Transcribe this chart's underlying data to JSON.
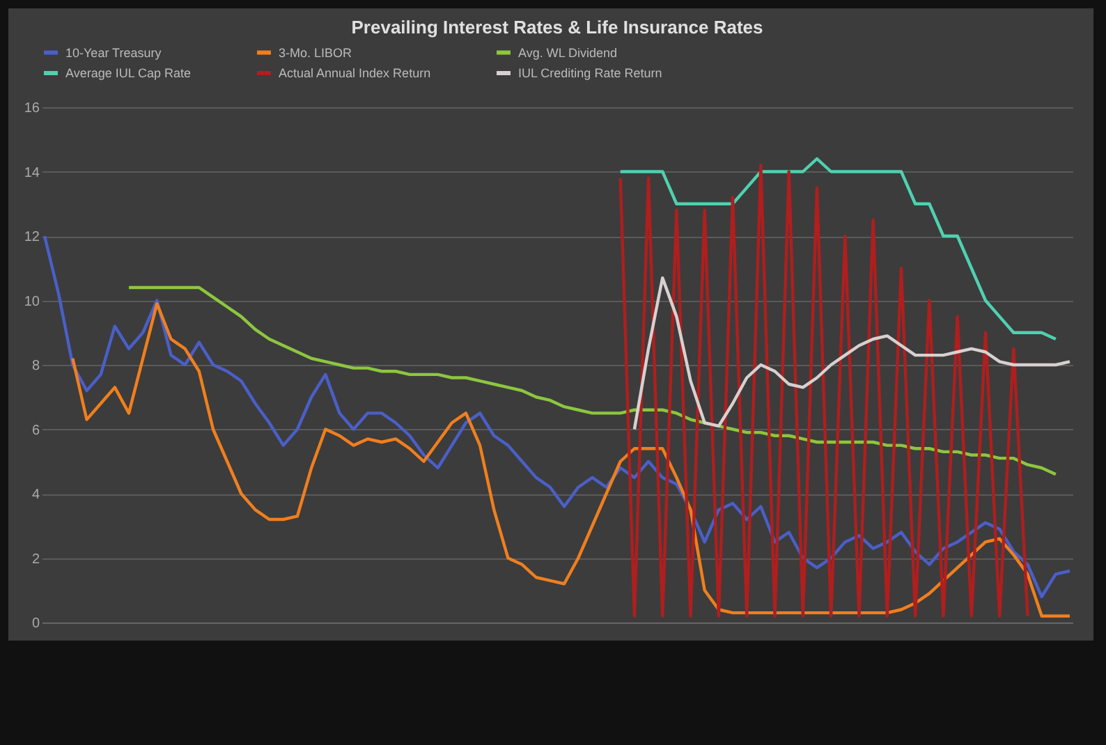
{
  "chart_data": {
    "type": "line",
    "title": "Prevailing Interest Rates & Life Insurance Rates",
    "categories": [
      null,
      null,
      null,
      null,
      null,
      null,
      null,
      null,
      null,
      null,
      null,
      null,
      null,
      null,
      null,
      null,
      null,
      null,
      null,
      null,
      null,
      null,
      null,
      null,
      null,
      null,
      null,
      null,
      null,
      null,
      null,
      null,
      null,
      null,
      null,
      null,
      null,
      null,
      null,
      null,
      null,
      null,
      null,
      null,
      null,
      null,
      null,
      null,
      null,
      null,
      null,
      null,
      null,
      null,
      null,
      null,
      null,
      null,
      null,
      null,
      null,
      null,
      null,
      null,
      null,
      null,
      null,
      null,
      null,
      null,
      null,
      null,
      null,
      null
    ],
    "ylim": [
      0,
      16
    ],
    "yticks": [
      0,
      2,
      4,
      6,
      8,
      10,
      12,
      14,
      16
    ],
    "grid": "y",
    "legend": "top",
    "series": [
      {
        "name": "10-Year Treasury",
        "color": "#4a5fc8",
        "values": [
          12.0,
          10.2,
          8.0,
          7.2,
          7.7,
          9.2,
          8.5,
          9.0,
          10.0,
          8.3,
          8.0,
          8.7,
          8.0,
          7.8,
          7.5,
          6.8,
          6.2,
          5.5,
          6.0,
          7.0,
          7.7,
          6.5,
          6.0,
          6.5,
          6.5,
          6.2,
          5.8,
          5.2,
          4.8,
          5.5,
          6.2,
          6.5,
          5.8,
          5.5,
          5.0,
          4.5,
          4.2,
          3.6,
          4.2,
          4.5,
          4.2,
          4.8,
          4.5,
          5.0,
          4.5,
          4.3,
          3.5,
          2.5,
          3.5,
          3.7,
          3.2,
          3.6,
          2.5,
          2.8,
          2.0,
          1.7,
          2.0,
          2.5,
          2.7,
          2.3,
          2.5,
          2.8,
          2.2,
          1.8,
          2.3,
          2.5,
          2.8,
          3.1,
          2.9,
          2.2,
          1.8,
          0.8,
          1.5,
          1.6
        ]
      },
      {
        "name": "3-Mo. LIBOR",
        "color": "#f07f1e",
        "values": [
          null,
          null,
          8.2,
          6.3,
          6.8,
          7.3,
          6.5,
          8.2,
          9.9,
          8.8,
          8.5,
          7.8,
          6.0,
          5.0,
          4.0,
          3.5,
          3.2,
          3.2,
          3.3,
          4.8,
          6.0,
          5.8,
          5.5,
          5.7,
          5.6,
          5.7,
          5.4,
          5.0,
          5.6,
          6.2,
          6.5,
          5.5,
          3.5,
          2.0,
          1.8,
          1.4,
          1.3,
          1.2,
          2.0,
          3.0,
          4.0,
          5.0,
          5.4,
          5.4,
          5.4,
          4.5,
          3.5,
          1.0,
          0.4,
          0.3,
          0.3,
          0.3,
          0.3,
          0.3,
          0.3,
          0.3,
          0.3,
          0.3,
          0.3,
          0.3,
          0.3,
          0.4,
          0.6,
          0.9,
          1.3,
          1.7,
          2.1,
          2.5,
          2.6,
          2.1,
          1.5,
          0.2,
          0.2,
          0.2
        ]
      },
      {
        "name": "Avg. WL Dividend",
        "color": "#8dc63f",
        "values": [
          null,
          null,
          null,
          null,
          null,
          null,
          10.4,
          10.4,
          10.4,
          10.4,
          10.4,
          10.4,
          10.1,
          9.8,
          9.5,
          9.1,
          8.8,
          8.6,
          8.4,
          8.2,
          8.1,
          8.0,
          7.9,
          7.9,
          7.8,
          7.8,
          7.7,
          7.7,
          7.7,
          7.6,
          7.6,
          7.5,
          7.4,
          7.3,
          7.2,
          7.0,
          6.9,
          6.7,
          6.6,
          6.5,
          6.5,
          6.5,
          6.6,
          6.6,
          6.6,
          6.5,
          6.3,
          6.2,
          6.1,
          6.0,
          5.9,
          5.9,
          5.8,
          5.8,
          5.7,
          5.6,
          5.6,
          5.6,
          5.6,
          5.6,
          5.5,
          5.5,
          5.4,
          5.4,
          5.3,
          5.3,
          5.2,
          5.2,
          5.1,
          5.1,
          4.9,
          4.8,
          4.6,
          null
        ]
      },
      {
        "name": "Average IUL Cap Rate",
        "color": "#4fd1b0",
        "values": [
          null,
          null,
          null,
          null,
          null,
          null,
          null,
          null,
          null,
          null,
          null,
          null,
          null,
          null,
          null,
          null,
          null,
          null,
          null,
          null,
          null,
          null,
          null,
          null,
          null,
          null,
          null,
          null,
          null,
          null,
          null,
          null,
          null,
          null,
          null,
          null,
          null,
          null,
          null,
          null,
          null,
          14.0,
          14.0,
          14.0,
          14.0,
          13.0,
          13.0,
          13.0,
          13.0,
          13.0,
          13.5,
          14.0,
          14.0,
          14.0,
          14.0,
          14.4,
          14.0,
          14.0,
          14.0,
          14.0,
          14.0,
          14.0,
          13.0,
          13.0,
          12.0,
          12.0,
          11.0,
          10.0,
          9.5,
          9.0,
          9.0,
          9.0,
          8.8,
          null
        ]
      },
      {
        "name": "Actual Annual Index Return",
        "color": "#b01e1e",
        "values": [
          null,
          null,
          null,
          null,
          null,
          null,
          null,
          null,
          null,
          null,
          null,
          null,
          null,
          null,
          null,
          null,
          null,
          null,
          null,
          null,
          null,
          null,
          null,
          null,
          null,
          null,
          null,
          null,
          null,
          null,
          null,
          null,
          null,
          null,
          null,
          null,
          null,
          null,
          null,
          null,
          null,
          13.8,
          0.2,
          13.8,
          0.2,
          12.8,
          0.2,
          12.8,
          0.2,
          13.2,
          0.2,
          14.2,
          0.2,
          14.0,
          0.2,
          13.5,
          0.2,
          12.0,
          0.2,
          12.5,
          0.2,
          11.0,
          0.2,
          10.0,
          0.2,
          9.5,
          0.2,
          9.0,
          0.2,
          8.5,
          0.2,
          null,
          null,
          null
        ]
      },
      {
        "name": "IUL Crediting Rate Return",
        "color": "#d8d0d0",
        "values": [
          null,
          null,
          null,
          null,
          null,
          null,
          null,
          null,
          null,
          null,
          null,
          null,
          null,
          null,
          null,
          null,
          null,
          null,
          null,
          null,
          null,
          null,
          null,
          null,
          null,
          null,
          null,
          null,
          null,
          null,
          null,
          null,
          null,
          null,
          null,
          null,
          null,
          null,
          null,
          null,
          null,
          null,
          6.0,
          8.5,
          10.7,
          9.5,
          7.5,
          6.2,
          6.1,
          6.8,
          7.6,
          8.0,
          7.8,
          7.4,
          7.3,
          7.6,
          8.0,
          8.3,
          8.6,
          8.8,
          8.9,
          8.6,
          8.3,
          8.3,
          8.3,
          8.4,
          8.5,
          8.4,
          8.1,
          8.0,
          8.0,
          8.0,
          8.0,
          8.1
        ]
      }
    ]
  }
}
